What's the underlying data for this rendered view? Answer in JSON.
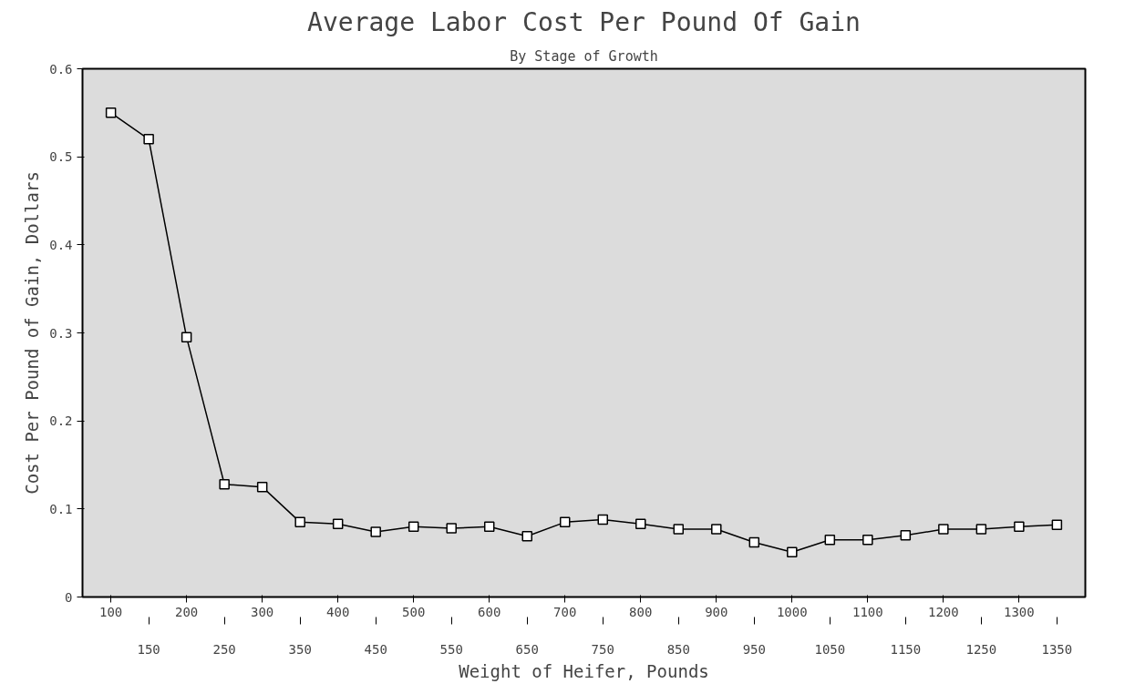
{
  "chart_data": {
    "type": "line",
    "title": "Average Labor Cost Per Pound Of Gain",
    "subtitle": "By Stage of Growth",
    "xlabel": "Weight of Heifer, Pounds",
    "ylabel": "Cost Per Pound of Gain, Dollars",
    "categories": [
      "100",
      "150",
      "200",
      "250",
      "300",
      "350",
      "400",
      "450",
      "500",
      "550",
      "600",
      "650",
      "700",
      "750",
      "800",
      "850",
      "900",
      "950",
      "1000",
      "1050",
      "1100",
      "1150",
      "1200",
      "1250",
      "1300",
      "1350"
    ],
    "series": [
      {
        "color": "#000000",
        "values": [
          0.55,
          0.52,
          0.295,
          0.128,
          0.125,
          0.085,
          0.083,
          0.074,
          0.08,
          0.078,
          0.08,
          0.069,
          0.085,
          0.088,
          0.083,
          0.077,
          0.077,
          0.062,
          0.051,
          0.065,
          0.065,
          0.07,
          0.077,
          0.077,
          0.08,
          0.082
        ]
      }
    ],
    "ylim": [
      0,
      0.6
    ],
    "yticks": [
      0,
      0.1,
      0.2,
      0.3,
      0.4,
      0.5,
      0.6
    ],
    "marker": "square",
    "line_style": "solid",
    "grid": false
  }
}
